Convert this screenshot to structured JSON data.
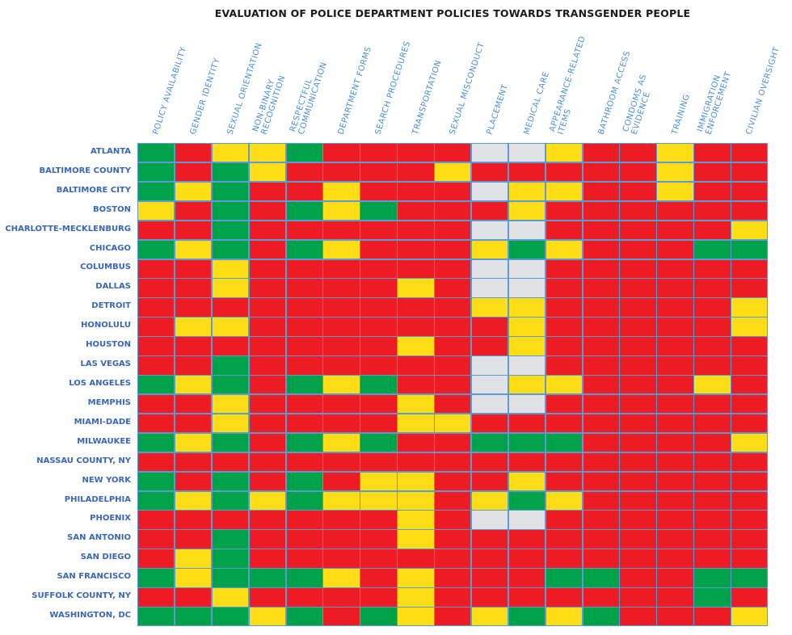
{
  "chart_data": {
    "type": "heatmap",
    "title": "EVALUATION OF POLICE DEPARTMENT POLICIES TOWARDS TRANSGENDER PEOPLE",
    "columns": [
      "POLICY AVAILABILITY",
      "GENDER IDENTITY",
      "SEXUAL ORIENTATION",
      "NON-BINARY\nRECOGNITION",
      "RESPECTFUL\nCOMMUNICATION",
      "DEPARTMENT FORMS",
      "SEARCH PROCEDURES",
      "TRANSPORTATION",
      "SEXUAL MISCONDUCT",
      "PLACEMENT",
      "MEDICAL CARE",
      "APPEARANCE-RELATED\nITEMS",
      "BATHROOM ACCESS",
      "CONDOMS AS\nEVIDENCE",
      "TRAINING",
      "IMMIGRATION\nENFORCEMENT",
      "CIVILIAN OVERSIGHT"
    ],
    "rows": [
      "ATLANTA",
      "BALTIMORE COUNTY",
      "BALTIMORE CITY",
      "BOSTON",
      "CHARLOTTE-MECKLENBURG",
      "CHICAGO",
      "COLUMBUS",
      "DALLAS",
      "DETROIT",
      "HONOLULU",
      "HOUSTON",
      "LAS VEGAS",
      "LOS ANGELES",
      "MEMPHIS",
      "MIAMI-DADE",
      "MILWAUKEE",
      "NASSAU COUNTY, NY",
      "NEW YORK",
      "PHILADELPHIA",
      "PHOENIX",
      "SAN ANTONIO",
      "SAN DIEGO",
      "SAN FRANCISCO",
      "SUFFOLK COUNTY, NY",
      "WASHINGTON, DC"
    ],
    "color_key": {
      "G": "#00a14b",
      "R": "#ed1c24",
      "Y": "#ffde17",
      "W": "#e1e2e6"
    },
    "values": [
      "GRYYGRRRRWWYRRYRR",
      "GRGYRRRRYRRRRRYRR",
      "GYGRRYRRRWYYRRYRR",
      "YRGRGYGRRRYRRRRRR",
      "RRGRRRRRRWWRRRRRY",
      "GYGRGYRRRYGYRRRGG",
      "RRYRRRRRRWWRRRRRR",
      "RRYRRRRYRWWRRRRRR",
      "RRRRRRRRRYYRRRRRY",
      "RYYRRRRRRRYRRRRRY",
      "RRRRRRRYRRYRRRRRR",
      "RRGRRRRRRWWRRRRRR",
      "GYGRGYGRRWYYRRRYR",
      "RRYRRRRYRWWRRRRRR",
      "RRYRRRRYYRRRRRRRR",
      "GYGRGYGRRGGGRRRRY",
      "RRRRRRRRRRRRRRRRR",
      "GRGRGRYYRRYRRRRRR",
      "GYGYGYYYRYGYRRRRR",
      "RRRRRRRYRWWRRRRRR",
      "RRGRRRRYRRRRRRRRR",
      "RYGRRRRRRRRRRRRRR",
      "GYGGGYRYRRRGGRRGG",
      "RRYRRRRYRRRRRRRGR",
      "GGGYGRGYRYGYGRRRY"
    ],
    "grid_color": "#5b9bd5"
  }
}
